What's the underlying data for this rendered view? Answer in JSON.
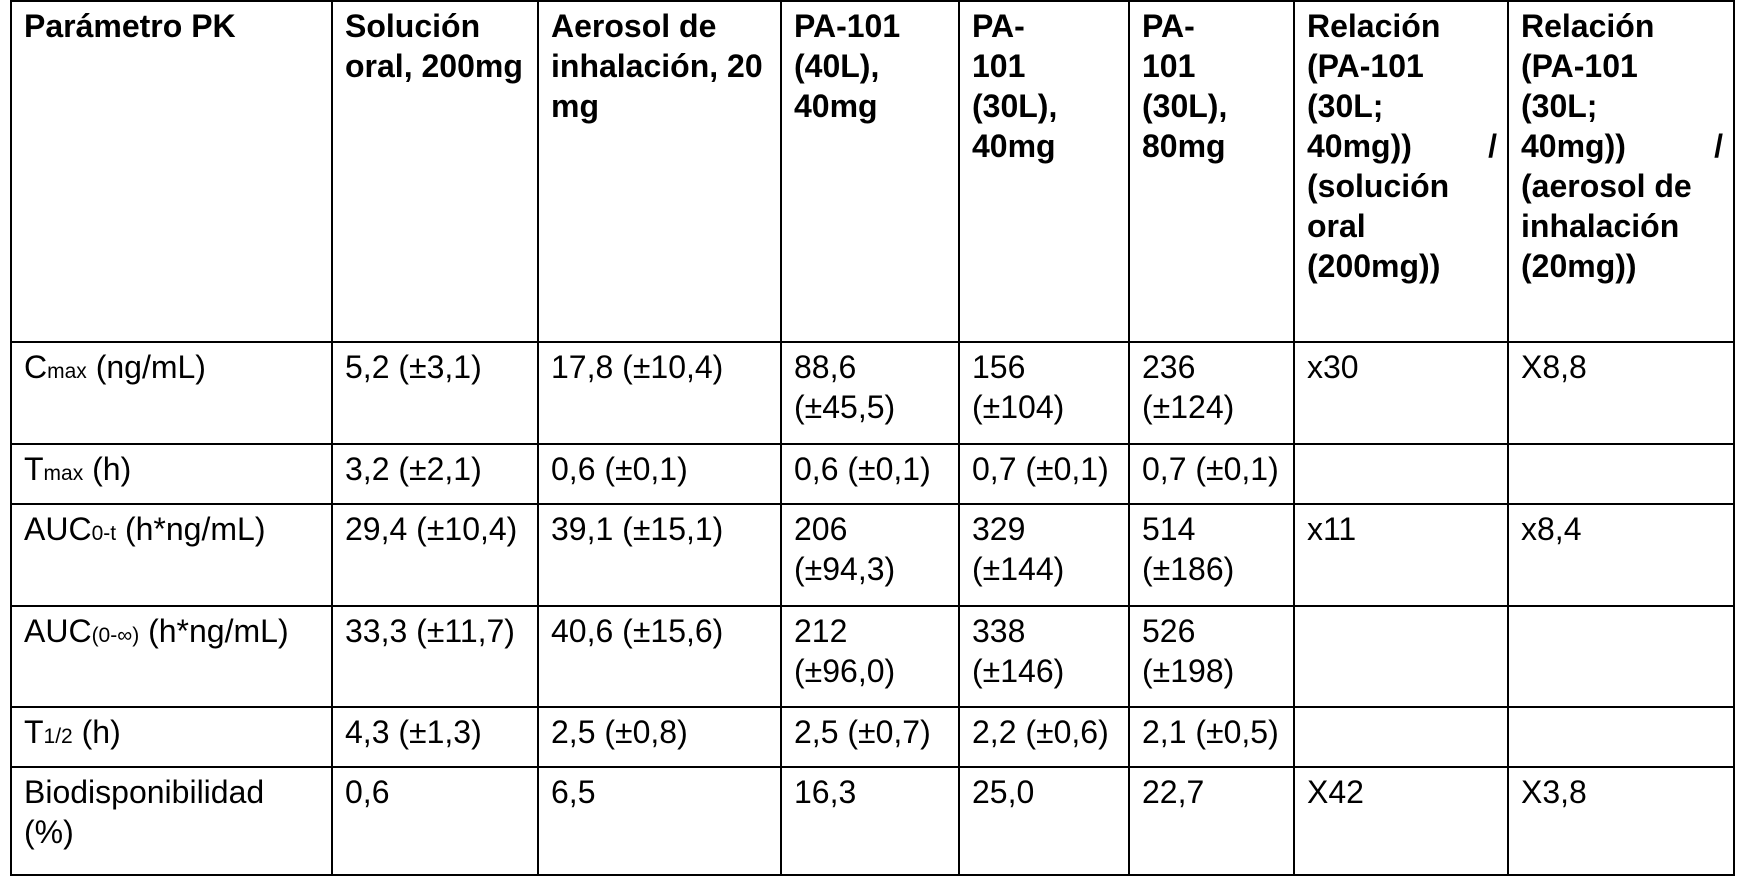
{
  "header": {
    "param": "Parámetro PK",
    "c1": "Solución oral, 200mg",
    "c2": "Aerosol de inhalación, 20 mg",
    "c3": "PA-101 (40L), 40mg",
    "c4a": "PA-",
    "c4b": "101 (30L), 40mg",
    "c5a": "PA-",
    "c5b": "101 (30L), 80mg",
    "c6a": "Relación (PA-101 (30L;",
    "c6b": "40mg))",
    "c6slash": "/",
    "c6c": "(solución oral (200mg))",
    "c7a": "Relación (PA-101 (30L;",
    "c7b": "40mg))",
    "c7slash": "/",
    "c7c": "(aerosol de inhalación (20mg))"
  },
  "rows": [
    {
      "label_main": "C",
      "label_sub": "max",
      "label_rest": " (ng/mL)",
      "v1": "5,2 (±3,1)",
      "v2": "17,8 (±10,4)",
      "v3": "88,6 (±45,5)",
      "v4": "156 (±104)",
      "v5": "236 (±124)",
      "v6": "x30",
      "v7": "X8,8"
    },
    {
      "label_main": "T",
      "label_sub": "max",
      "label_rest": " (h)",
      "v1": "3,2 (±2,1)",
      "v2": "0,6 (±0,1)",
      "v3": "0,6 (±0,1)",
      "v4": "0,7 (±0,1)",
      "v5": "0,7 (±0,1)",
      "v6": "",
      "v7": ""
    },
    {
      "label_main": "AUC",
      "label_sub": "0-t",
      "label_rest": " (h*ng/mL)",
      "v1": "29,4 (±10,4)",
      "v2": "39,1 (±15,1)",
      "v3": "206 (±94,3)",
      "v4": "329 (±144)",
      "v5": "514 (±186)",
      "v6": "x11",
      "v7": "x8,4"
    },
    {
      "label_main": "AUC",
      "label_sub": "(0-∞)",
      "label_rest": " (h*ng/mL)",
      "v1": "33,3 (±11,7)",
      "v2": "40,6 (±15,6)",
      "v3": "212 (±96,0)",
      "v4": "338 (±146)",
      "v5": "526 (±198)",
      "v6": "",
      "v7": ""
    },
    {
      "label_main": "T",
      "label_sub": "1/2",
      "label_rest": " (h)",
      "v1": "4,3 (±1,3)",
      "v2": "2,5 (±0,8)",
      "v3": "2,5 (±0,7)",
      "v4": "2,2 (±0,6)",
      "v5": "2,1 (±0,5)",
      "v6": "",
      "v7": ""
    },
    {
      "label_main": "Biodisponibilidad (%)",
      "label_sub": "",
      "label_rest": "",
      "v1": "0,6",
      "v2": "6,5",
      "v3": "16,3",
      "v4": "25,0",
      "v5": "22,7",
      "v6": "X42",
      "v7": "X3,8"
    }
  ]
}
